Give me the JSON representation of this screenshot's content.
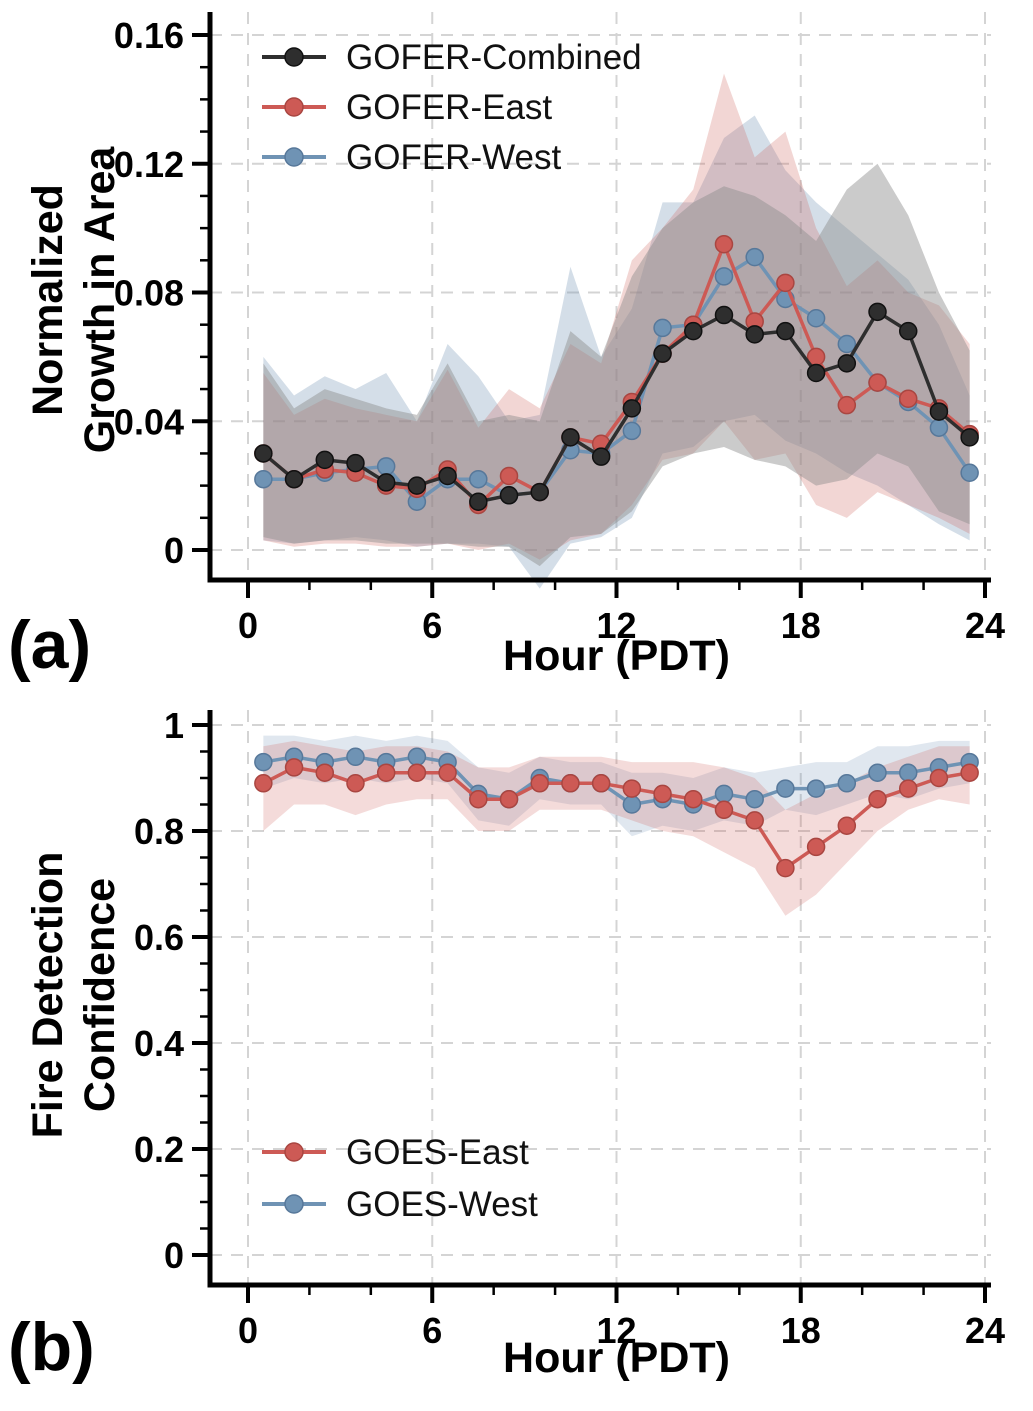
{
  "background": "#ffffff",
  "chart_data": {
    "type": "line",
    "grid": true,
    "grid_color": "#d4d4d4",
    "panels": [
      {
        "panel_label": "(a)",
        "xlabel": "Hour (PDT)",
        "ylabel_lines": [
          "Normalized",
          "Growth in Area"
        ],
        "xlim": [
          0,
          24
        ],
        "ylim": [
          0,
          0.16
        ],
        "xticks": [
          0,
          6,
          12,
          18,
          24
        ],
        "xtick_labels": [
          "0",
          "6",
          "12",
          "18",
          "24"
        ],
        "yticks": [
          0,
          0.04,
          0.08,
          0.12,
          0.16
        ],
        "ytick_labels": [
          "0",
          "0.04",
          "0.08",
          "0.12",
          "0.16"
        ],
        "x_minor_step": 2,
        "y_minor_step": 0.01,
        "legend_position": "top-left",
        "x": [
          0.5,
          1.5,
          2.5,
          3.5,
          4.5,
          5.5,
          6.5,
          7.5,
          8.5,
          9.5,
          10.5,
          11.5,
          12.5,
          13.5,
          14.5,
          15.5,
          16.5,
          17.5,
          18.5,
          19.5,
          20.5,
          21.5,
          22.5,
          23.5
        ],
        "series": [
          {
            "name": "GOFER-Combined",
            "color": "#2e2e2e",
            "edge_color": "#111111",
            "band_color": "#8c8c8c",
            "band_opacity": 0.45,
            "values": [
              0.03,
              0.022,
              0.028,
              0.027,
              0.021,
              0.02,
              0.023,
              0.015,
              0.017,
              0.018,
              0.035,
              0.029,
              0.044,
              0.061,
              0.068,
              0.073,
              0.067,
              0.068,
              0.055,
              0.058,
              0.074,
              0.068,
              0.043,
              0.035
            ],
            "band_low": [
              0.004,
              0.002,
              0.003,
              0.003,
              0.002,
              0.002,
              0.002,
              0.001,
              0.001,
              -0.005,
              0.004,
              0.005,
              0.012,
              0.026,
              0.03,
              0.032,
              0.028,
              0.026,
              0.02,
              0.022,
              0.03,
              0.026,
              0.012,
              0.008
            ],
            "band_high": [
              0.058,
              0.044,
              0.05,
              0.047,
              0.044,
              0.042,
              0.058,
              0.04,
              0.042,
              0.04,
              0.068,
              0.06,
              0.085,
              0.1,
              0.108,
              0.113,
              0.11,
              0.104,
              0.096,
              0.112,
              0.12,
              0.104,
              0.08,
              0.062
            ]
          },
          {
            "name": "GOFER-East",
            "color": "#cd5a55",
            "edge_color": "#a94641",
            "band_color": "#cd5a55",
            "band_opacity": 0.25,
            "values": [
              0.03,
              0.022,
              0.025,
              0.024,
              0.02,
              0.019,
              0.025,
              0.014,
              0.023,
              0.018,
              0.035,
              0.033,
              0.046,
              0.061,
              0.07,
              0.095,
              0.071,
              0.083,
              0.06,
              0.045,
              0.052,
              0.047,
              0.044,
              0.036
            ],
            "band_low": [
              0.003,
              0.001,
              0.002,
              0.002,
              0.001,
              0.001,
              0.002,
              0.0,
              0.002,
              -0.003,
              0.003,
              0.005,
              0.014,
              0.028,
              0.03,
              0.04,
              0.028,
              0.03,
              0.014,
              0.01,
              0.018,
              0.014,
              0.01,
              0.005
            ],
            "band_high": [
              0.055,
              0.042,
              0.047,
              0.044,
              0.042,
              0.04,
              0.056,
              0.038,
              0.05,
              0.044,
              0.064,
              0.058,
              0.09,
              0.1,
              0.112,
              0.148,
              0.122,
              0.13,
              0.1,
              0.082,
              0.09,
              0.08,
              0.076,
              0.064
            ]
          },
          {
            "name": "GOFER-West",
            "color": "#6f93b4",
            "edge_color": "#57789a",
            "band_color": "#7193b4",
            "band_opacity": 0.3,
            "values": [
              0.022,
              0.022,
              0.024,
              0.025,
              0.026,
              0.015,
              0.022,
              0.022,
              0.017,
              0.018,
              0.031,
              0.03,
              0.037,
              0.069,
              0.07,
              0.085,
              0.091,
              0.078,
              0.072,
              0.064,
              0.052,
              0.046,
              0.038,
              0.024
            ],
            "band_low": [
              0.003,
              0.002,
              0.003,
              0.004,
              0.003,
              0.001,
              0.002,
              0.002,
              0.001,
              -0.012,
              0.002,
              0.004,
              0.01,
              0.03,
              0.032,
              0.04,
              0.042,
              0.034,
              0.03,
              0.024,
              0.02,
              0.014,
              0.008,
              0.003
            ],
            "band_high": [
              0.06,
              0.048,
              0.054,
              0.05,
              0.055,
              0.04,
              0.064,
              0.054,
              0.04,
              0.042,
              0.088,
              0.06,
              0.075,
              0.108,
              0.108,
              0.128,
              0.135,
              0.118,
              0.108,
              0.1,
              0.092,
              0.084,
              0.07,
              0.048
            ]
          }
        ]
      },
      {
        "panel_label": "(b)",
        "xlabel": "Hour (PDT)",
        "ylabel_lines": [
          "Fire Detection",
          "Confidence"
        ],
        "xlim": [
          0,
          24
        ],
        "ylim": [
          0,
          1
        ],
        "xticks": [
          0,
          6,
          12,
          18,
          24
        ],
        "xtick_labels": [
          "0",
          "6",
          "12",
          "18",
          "24"
        ],
        "yticks": [
          0,
          0.2,
          0.4,
          0.6,
          0.8,
          1
        ],
        "ytick_labels": [
          "0",
          "0.2",
          "0.4",
          "0.6",
          "0.8",
          "1"
        ],
        "x_minor_step": 2,
        "y_minor_step": 0.05,
        "legend_position": "bottom-left",
        "x": [
          0.5,
          1.5,
          2.5,
          3.5,
          4.5,
          5.5,
          6.5,
          7.5,
          8.5,
          9.5,
          10.5,
          11.5,
          12.5,
          13.5,
          14.5,
          15.5,
          16.5,
          17.5,
          18.5,
          19.5,
          20.5,
          21.5,
          22.5,
          23.5
        ],
        "series": [
          {
            "name": "GOES-East",
            "color": "#cd5a55",
            "edge_color": "#a94641",
            "band_color": "#cd5a55",
            "band_opacity": 0.22,
            "values": [
              0.89,
              0.92,
              0.91,
              0.89,
              0.91,
              0.91,
              0.91,
              0.86,
              0.86,
              0.89,
              0.89,
              0.89,
              0.88,
              0.87,
              0.86,
              0.84,
              0.82,
              0.73,
              0.77,
              0.81,
              0.86,
              0.88,
              0.9,
              0.91
            ],
            "band_low": [
              0.8,
              0.85,
              0.85,
              0.83,
              0.85,
              0.86,
              0.86,
              0.8,
              0.8,
              0.84,
              0.84,
              0.84,
              0.82,
              0.8,
              0.79,
              0.76,
              0.73,
              0.64,
              0.68,
              0.74,
              0.8,
              0.84,
              0.86,
              0.85
            ],
            "band_high": [
              0.96,
              0.97,
              0.96,
              0.95,
              0.96,
              0.96,
              0.95,
              0.92,
              0.92,
              0.94,
              0.94,
              0.94,
              0.93,
              0.93,
              0.93,
              0.92,
              0.9,
              0.84,
              0.87,
              0.89,
              0.92,
              0.94,
              0.96,
              0.96
            ]
          },
          {
            "name": "GOES-West",
            "color": "#6f93b4",
            "edge_color": "#57789a",
            "band_color": "#7193b4",
            "band_opacity": 0.22,
            "values": [
              0.93,
              0.94,
              0.93,
              0.94,
              0.93,
              0.94,
              0.93,
              0.87,
              0.86,
              0.9,
              0.89,
              0.89,
              0.85,
              0.86,
              0.85,
              0.87,
              0.86,
              0.88,
              0.88,
              0.89,
              0.91,
              0.91,
              0.92,
              0.93
            ],
            "band_low": [
              0.88,
              0.9,
              0.89,
              0.9,
              0.89,
              0.9,
              0.89,
              0.82,
              0.81,
              0.86,
              0.85,
              0.85,
              0.79,
              0.81,
              0.8,
              0.82,
              0.81,
              0.84,
              0.83,
              0.85,
              0.87,
              0.86,
              0.88,
              0.89
            ],
            "band_high": [
              0.98,
              0.98,
              0.97,
              0.98,
              0.97,
              0.98,
              0.97,
              0.92,
              0.91,
              0.94,
              0.93,
              0.93,
              0.91,
              0.91,
              0.9,
              0.92,
              0.91,
              0.92,
              0.93,
              0.93,
              0.96,
              0.96,
              0.97,
              0.97
            ]
          }
        ]
      }
    ]
  }
}
